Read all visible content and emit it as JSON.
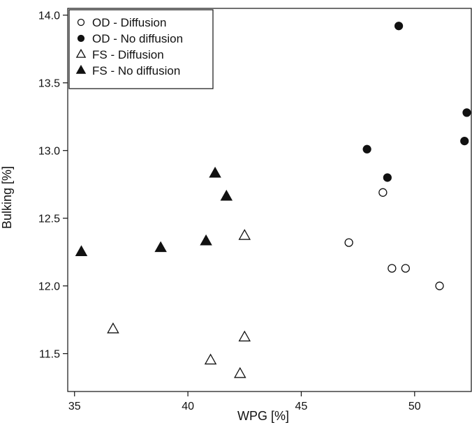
{
  "chart_data": {
    "type": "scatter",
    "title": "",
    "xlabel": "WPG [%]",
    "ylabel": "Bulking [%]",
    "xlim": [
      34.7,
      52.5
    ],
    "ylim": [
      11.22,
      14.05
    ],
    "x_ticks": [
      35,
      40,
      45,
      50
    ],
    "y_ticks": [
      11.5,
      12.0,
      12.5,
      13.0,
      13.5,
      14.0
    ],
    "x_tick_labels": [
      "35",
      "40",
      "45",
      "50"
    ],
    "y_tick_labels": [
      "11.5",
      "12.0",
      "12.5",
      "13.0",
      "13.5",
      "14.0"
    ],
    "grid": false,
    "legend_position": "top-left",
    "series": [
      {
        "name": "OD - Diffusion",
        "marker": "circle-open",
        "points": [
          {
            "x": 47.1,
            "y": 12.32
          },
          {
            "x": 48.6,
            "y": 12.69
          },
          {
            "x": 49.0,
            "y": 12.13
          },
          {
            "x": 49.6,
            "y": 12.13
          },
          {
            "x": 51.1,
            "y": 12.0
          }
        ]
      },
      {
        "name": "OD - No diffusion",
        "marker": "circle-filled",
        "points": [
          {
            "x": 47.9,
            "y": 13.01
          },
          {
            "x": 48.8,
            "y": 12.8
          },
          {
            "x": 49.3,
            "y": 13.92
          },
          {
            "x": 52.2,
            "y": 13.07
          },
          {
            "x": 52.3,
            "y": 13.28
          }
        ]
      },
      {
        "name": "FS - Diffusion",
        "marker": "triangle-open",
        "points": [
          {
            "x": 36.7,
            "y": 11.68
          },
          {
            "x": 41.0,
            "y": 11.45
          },
          {
            "x": 42.3,
            "y": 11.35
          },
          {
            "x": 42.5,
            "y": 11.62
          },
          {
            "x": 42.5,
            "y": 12.37
          }
        ]
      },
      {
        "name": "FS - No diffusion",
        "marker": "triangle-filled",
        "points": [
          {
            "x": 35.3,
            "y": 12.25
          },
          {
            "x": 38.8,
            "y": 12.28
          },
          {
            "x": 40.8,
            "y": 12.33
          },
          {
            "x": 41.2,
            "y": 12.83
          },
          {
            "x": 41.7,
            "y": 12.66
          }
        ]
      }
    ]
  }
}
